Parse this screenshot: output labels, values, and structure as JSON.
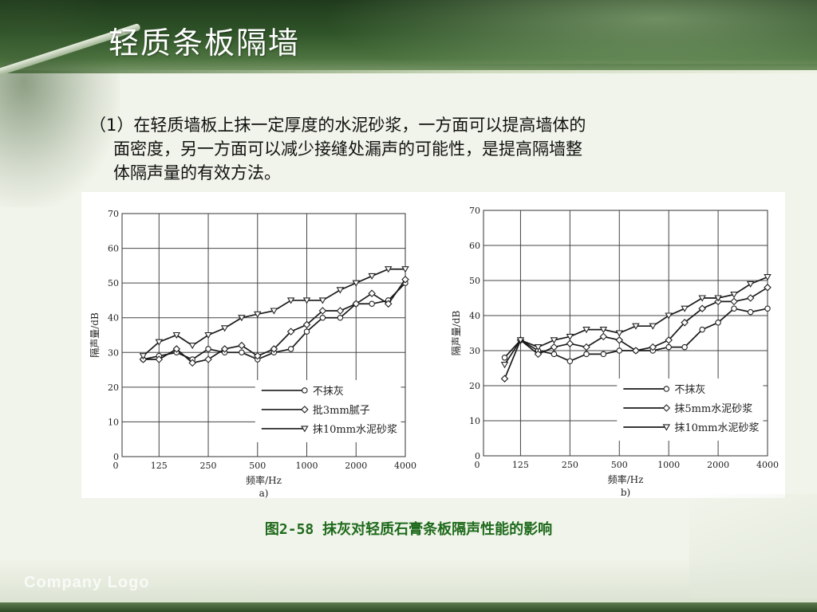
{
  "slide": {
    "title": "轻质条板隔墙",
    "paragraph_lines": [
      "（1）在轻质墙板上抹一定厚度的水泥砂浆，一方面可以提高墙体的",
      "面密度，另一方面可以减少接缝处漏声的可能性，是提高隔墙整",
      "体隔声量的有效方法。"
    ],
    "caption": "图2-58 抹灰对轻质石膏条板隔声性能的影响",
    "logo_text": "Company Logo"
  },
  "chart_data": [
    {
      "type": "line",
      "sublabel": "a)",
      "xlabel": "频率/Hz",
      "ylabel": "隔声量/dB",
      "ylim": [
        0,
        70
      ],
      "yticks": [
        0,
        10,
        20,
        30,
        40,
        50,
        60,
        70
      ],
      "x_tick_labels": [
        "125",
        "250",
        "500",
        "1000",
        "2000",
        "4000"
      ],
      "xlim_octaves": [
        -0.75,
        5
      ],
      "x": [
        100,
        125,
        160,
        200,
        250,
        315,
        400,
        500,
        630,
        800,
        1000,
        1250,
        1600,
        2000,
        2500,
        3150,
        4000
      ],
      "grid": true,
      "legend_position": "bottom-right",
      "series": [
        {
          "name": "不抹灰",
          "marker": "circle",
          "values": [
            28,
            29,
            30,
            28,
            31,
            30,
            30,
            28,
            30,
            31,
            36,
            40,
            40,
            44,
            44,
            45,
            50
          ]
        },
        {
          "name": "批3mm腻子",
          "marker": "diamond",
          "values": [
            28,
            28,
            31,
            27,
            28,
            31,
            32,
            29,
            31,
            36,
            38,
            42,
            42,
            44,
            47,
            44,
            51
          ]
        },
        {
          "name": "抹10mm水泥砂浆",
          "marker": "triangle-down",
          "values": [
            29,
            33,
            35,
            32,
            35,
            37,
            40,
            41,
            42,
            45,
            45,
            45,
            48,
            50,
            52,
            54,
            54
          ]
        }
      ]
    },
    {
      "type": "line",
      "sublabel": "b)",
      "xlabel": "频率/Hz",
      "ylabel": "隔声量/dB",
      "ylim": [
        0,
        70
      ],
      "yticks": [
        0,
        10,
        20,
        30,
        40,
        50,
        60,
        70
      ],
      "x_tick_labels": [
        "125",
        "250",
        "500",
        "1000",
        "2000",
        "4000"
      ],
      "xlim_octaves": [
        -0.75,
        5
      ],
      "x": [
        100,
        125,
        160,
        200,
        250,
        315,
        400,
        500,
        630,
        800,
        1000,
        1250,
        1600,
        2000,
        2500,
        3150,
        4000
      ],
      "grid": true,
      "legend_position": "bottom-right",
      "series": [
        {
          "name": "不抹灰",
          "marker": "circle",
          "values": [
            28,
            33,
            30,
            29,
            27,
            29,
            29,
            30,
            30,
            30,
            31,
            31,
            36,
            38,
            42,
            41,
            42
          ]
        },
        {
          "name": "抹5mm水泥砂浆",
          "marker": "diamond",
          "values": [
            22,
            33,
            29,
            31,
            32,
            31,
            34,
            33,
            30,
            31,
            33,
            38,
            42,
            44,
            44,
            45,
            48
          ]
        },
        {
          "name": "抹10mm水泥砂浆",
          "marker": "triangle-down",
          "values": [
            26,
            33,
            31,
            33,
            34,
            36,
            36,
            35,
            37,
            37,
            40,
            42,
            45,
            45,
            46,
            49,
            51
          ]
        }
      ]
    }
  ]
}
